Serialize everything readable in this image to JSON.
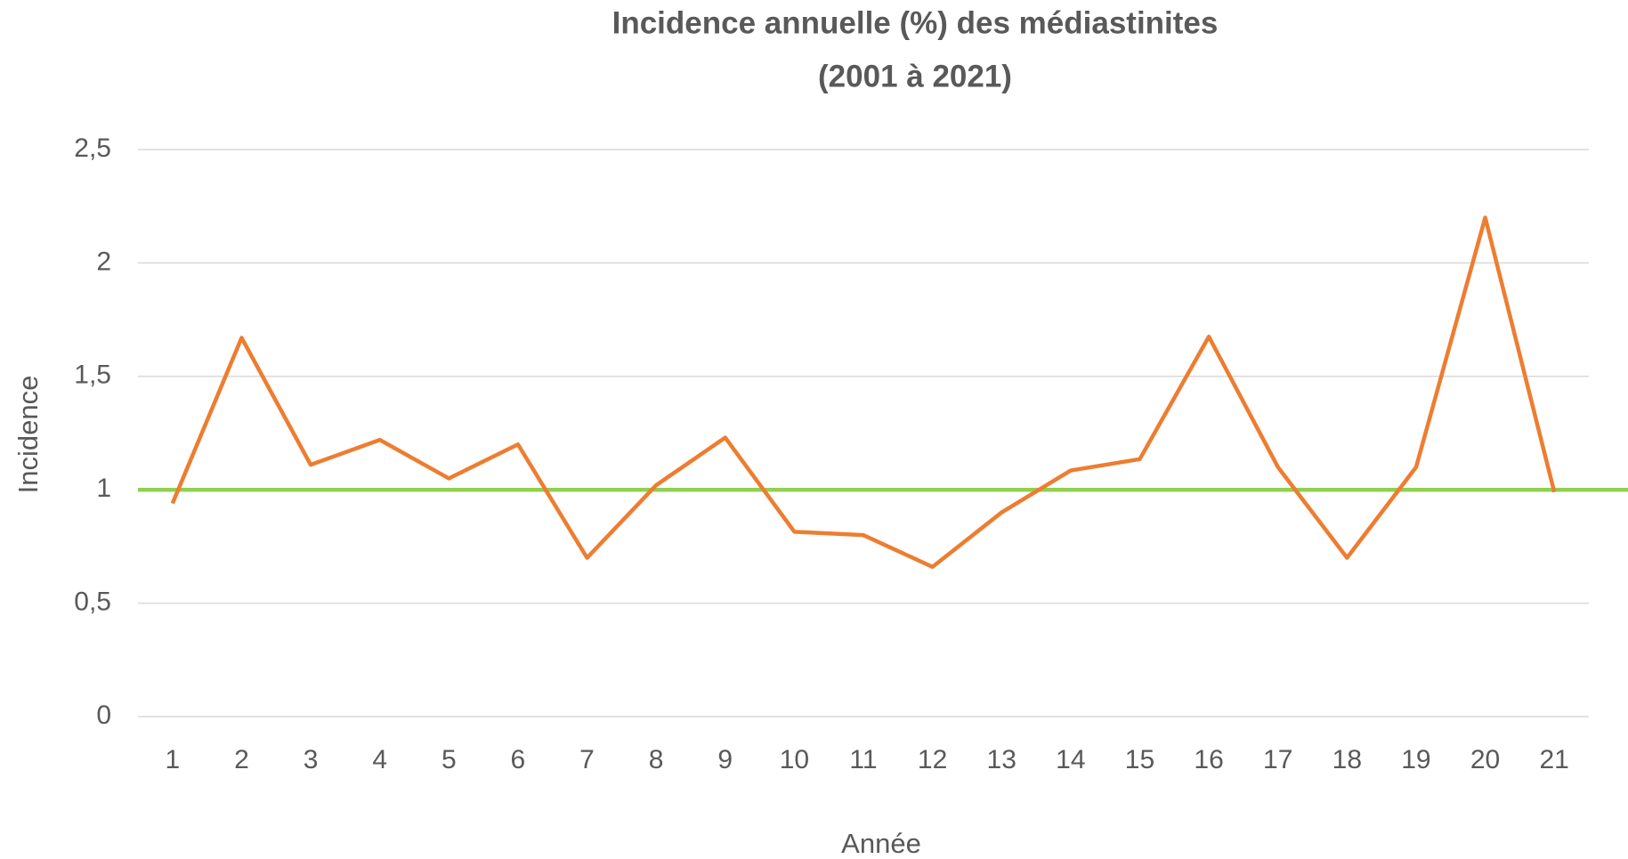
{
  "chart_data": {
    "type": "line",
    "title": [
      "Incidence annuelle (%) des médiastinites",
      "(2001 à 2021)"
    ],
    "x_label": "Année",
    "y_label": "Incidence",
    "categories": [
      "1",
      "2",
      "3",
      "4",
      "5",
      "6",
      "7",
      "8",
      "9",
      "10",
      "11",
      "12",
      "13",
      "14",
      "15",
      "16",
      "17",
      "18",
      "19",
      "20",
      "21"
    ],
    "series": [
      {
        "color": "#ed7d31",
        "values": [
          0.94,
          1.67,
          1.11,
          1.22,
          1.05,
          1.2,
          0.7,
          1.02,
          1.23,
          0.815,
          0.8,
          0.66,
          0.9,
          1.085,
          1.135,
          1.675,
          1.1,
          0.7,
          1.1,
          2.2,
          0.99
        ]
      }
    ],
    "reference_line": {
      "value": 1,
      "color": "#92d050"
    },
    "ylim": [
      0,
      2.5
    ],
    "yticks": [
      0,
      {
        "value": 0.5,
        "label": "0,5"
      },
      1,
      {
        "value": 1.5,
        "label": "1,5"
      },
      2,
      {
        "value": 2.5,
        "label": "2,5"
      }
    ],
    "grid": true
  }
}
